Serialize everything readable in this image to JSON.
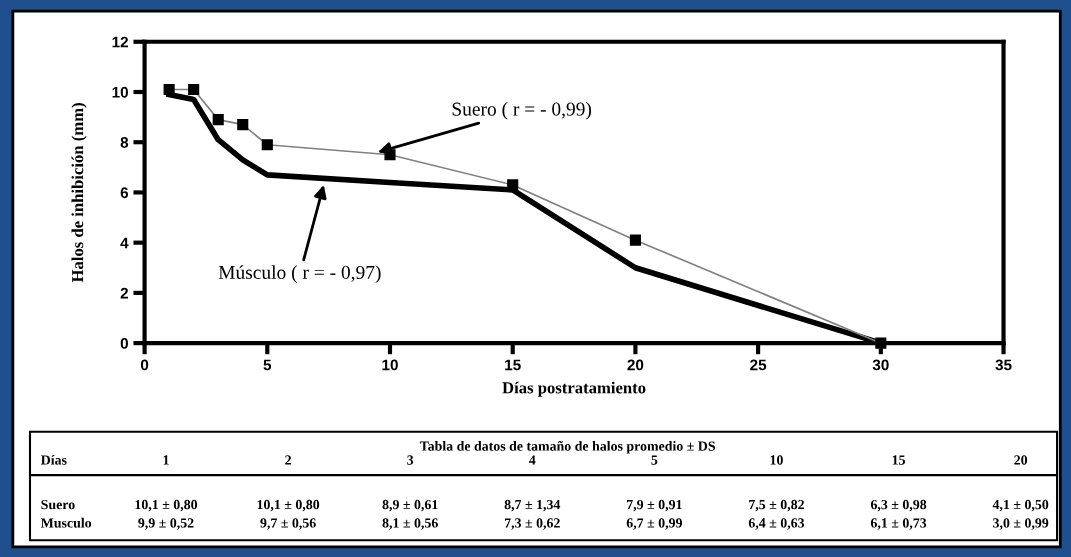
{
  "chart_data": {
    "type": "line",
    "xlabel": "Días postratamiento",
    "ylabel": "Halos de inhibición (mm)",
    "xlim": [
      0,
      35
    ],
    "xticks": [
      0,
      5,
      10,
      15,
      20,
      25,
      30,
      35
    ],
    "ylim": [
      0,
      12
    ],
    "yticks": [
      0,
      2,
      4,
      6,
      8,
      10,
      12
    ],
    "grid": false,
    "legend": false,
    "series": [
      {
        "color": "#808080",
        "marker": "square",
        "line_style": "solid",
        "x": [
          1,
          2,
          3,
          4,
          5,
          10,
          15,
          20,
          30
        ],
        "values": [
          10.1,
          10.1,
          8.9,
          8.7,
          7.9,
          7.5,
          6.3,
          4.1,
          0
        ]
      },
      {
        "color": "#000000",
        "marker": "none",
        "line_style": "solid",
        "x": [
          1,
          2,
          3,
          4,
          5,
          10,
          15,
          20,
          30
        ],
        "values": [
          9.9,
          9.7,
          8.1,
          7.3,
          6.7,
          6.4,
          6.1,
          3.0,
          0
        ]
      }
    ],
    "annotations": [
      {
        "text": "Suero ( r = - 0,99)",
        "x": 9.5,
        "y": 7.6
      },
      {
        "text": "Músculo ( r = - 0,97)",
        "x": 7.3,
        "y": 6.3
      },
      "Tabla de datos de tamaño de halos promedio ± DS",
      "Días",
      "1",
      "2",
      "3",
      "4",
      "5",
      "10",
      "15",
      "20",
      "Suero",
      "10,1 ± 0,80",
      "10,1 ± 0,80",
      "8,9 ± 0,61",
      "8,7 ± 1,34",
      "7,9 ± 0,91",
      "7,5 ± 0,82",
      "6,3 ± 0,98",
      "4,1 ± 0,50",
      "Musculo",
      "9,9 ± 0,52",
      "9,7 ± 0,56",
      "8,1 ± 0,56",
      "7,3 ± 0,62",
      "6,7 ± 0,99",
      "6,4 ± 0,63",
      "6,1 ± 0,73",
      "3,0 ± 0,99"
    ]
  }
}
